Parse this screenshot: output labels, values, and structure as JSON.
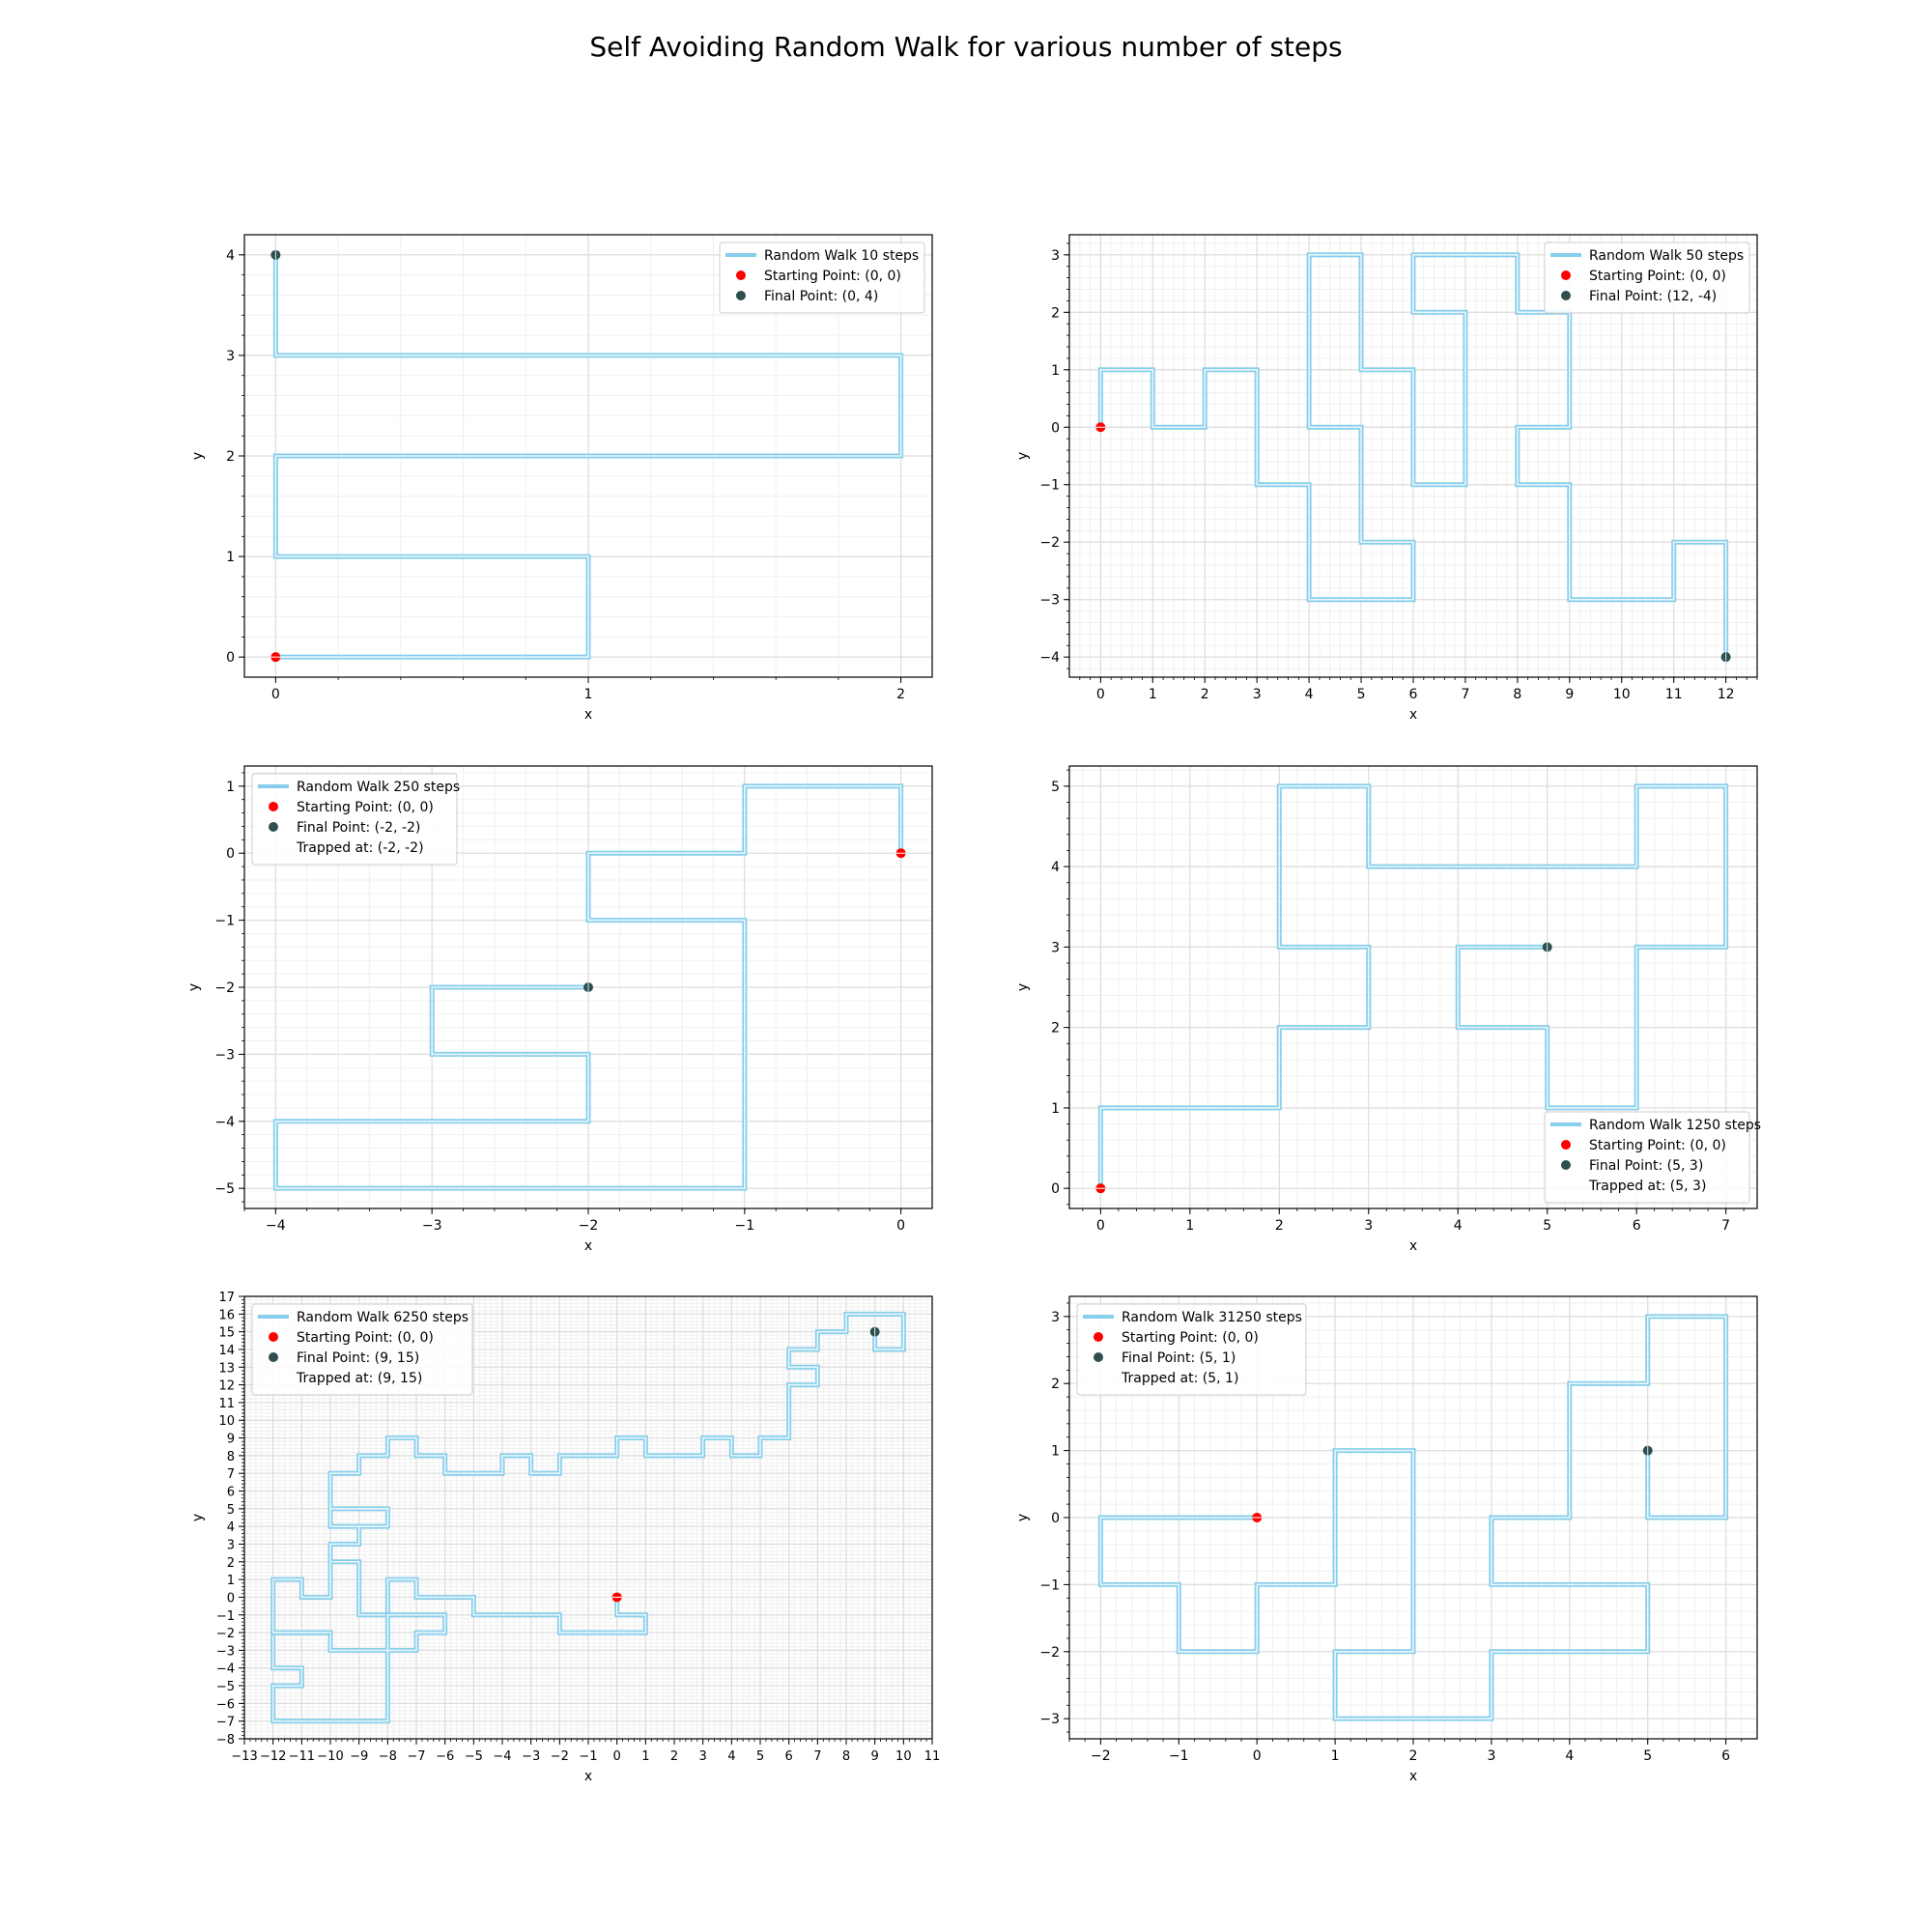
{
  "figure": {
    "title": "Self Avoiding Random Walk for various number of steps"
  },
  "colors": {
    "walk_outer": "#87CEEB",
    "walk_inner": "#e9f6fb",
    "start": "#ff0000",
    "final": "#2f4f4f",
    "grid_major": "#dddddd",
    "grid_minor": "#f0f0f0",
    "axis": "#000000",
    "legend_border": "#cccccc"
  },
  "chart_data": [
    {
      "type": "line",
      "xlabel": "x",
      "ylabel": "y",
      "xlim": [
        -0.1,
        2.1
      ],
      "ylim": [
        -0.2,
        4.2
      ],
      "xticks": [
        0,
        1,
        2
      ],
      "yticks": [
        0,
        1,
        2,
        3,
        4
      ],
      "grid": true,
      "legend_position": "top-right",
      "legend": [
        "Random Walk 10 steps",
        "Starting Point: (0, 0)",
        "Final Point:  (0, 4)"
      ],
      "series": [
        {
          "name": "Random Walk 10 steps",
          "x": [
            0,
            1,
            1,
            0,
            0,
            2,
            2,
            0,
            0
          ],
          "y": [
            0,
            0,
            1,
            1,
            2,
            2,
            3,
            3,
            4
          ]
        }
      ],
      "start": [
        0,
        0
      ],
      "final": [
        0,
        4
      ]
    },
    {
      "type": "line",
      "xlabel": "x",
      "ylabel": "y",
      "xlim": [
        -0.6,
        12.6
      ],
      "ylim": [
        -4.35,
        3.35
      ],
      "xticks": [
        0,
        1,
        2,
        3,
        4,
        5,
        6,
        7,
        8,
        9,
        10,
        11,
        12
      ],
      "yticks": [
        -4,
        -3,
        -2,
        -1,
        0,
        1,
        2,
        3
      ],
      "grid": true,
      "legend_position": "top-right",
      "legend": [
        "Random Walk 50 steps",
        "Starting Point: (0, 0)",
        "Final Point:  (12, -4)"
      ],
      "series": [
        {
          "name": "Random Walk 50 steps",
          "x": [
            0,
            0,
            1,
            1,
            2,
            2,
            3,
            3,
            4,
            4,
            5,
            5,
            6,
            6,
            5,
            5,
            4,
            4,
            5,
            5,
            6,
            6,
            7,
            7,
            6,
            6,
            8,
            8,
            9,
            9,
            8,
            8,
            9,
            9,
            11,
            11,
            12,
            12
          ],
          "y": [
            0,
            1,
            1,
            0,
            0,
            1,
            1,
            -1,
            -1,
            -3,
            -3,
            -3,
            -3,
            -2,
            -2,
            0,
            0,
            3,
            3,
            1,
            1,
            -1,
            -1,
            2,
            2,
            3,
            3,
            2,
            2,
            0,
            0,
            -1,
            -1,
            -3,
            -3,
            -2,
            -2,
            -4
          ]
        }
      ],
      "start": [
        0,
        0
      ],
      "final": [
        12,
        -4
      ]
    },
    {
      "type": "line",
      "xlabel": "x",
      "ylabel": "y",
      "xlim": [
        -4.2,
        0.2
      ],
      "ylim": [
        -5.3,
        1.3
      ],
      "xticks": [
        -4,
        -3,
        -2,
        -1,
        0
      ],
      "yticks": [
        -5,
        -4,
        -3,
        -2,
        -1,
        0,
        1
      ],
      "grid": true,
      "legend_position": "top-left",
      "legend": [
        "Random Walk 250 steps",
        "Starting Point: (0, 0)",
        "Final Point:  (-2, -2)",
        "Trapped at: (-2, -2)"
      ],
      "series": [
        {
          "name": "Random Walk 250 steps",
          "x": [
            0,
            0,
            -1,
            -1,
            -2,
            -2,
            -1,
            -1,
            -4,
            -4,
            -2,
            -2,
            -3,
            -3,
            -2
          ],
          "y": [
            0,
            1,
            1,
            0,
            0,
            -1,
            -1,
            -5,
            -5,
            -4,
            -4,
            -3,
            -3,
            -2,
            -2
          ]
        }
      ],
      "start": [
        0,
        0
      ],
      "final": [
        -2,
        -2
      ]
    },
    {
      "type": "line",
      "xlabel": "x",
      "ylabel": "y",
      "xlim": [
        -0.35,
        7.35
      ],
      "ylim": [
        -0.25,
        5.25
      ],
      "xticks": [
        0,
        1,
        2,
        3,
        4,
        5,
        6,
        7
      ],
      "yticks": [
        0,
        1,
        2,
        3,
        4,
        5
      ],
      "grid": true,
      "legend_position": "bottom-right",
      "legend": [
        "Random Walk 1250 steps",
        "Starting Point: (0, 0)",
        "Final Point:  (5, 3)",
        "Trapped at: (5, 3)"
      ],
      "series": [
        {
          "name": "Random Walk 1250 steps",
          "x": [
            0,
            0,
            2,
            2,
            3,
            3,
            2,
            2,
            3,
            3,
            6,
            6,
            7,
            7,
            6,
            6,
            5,
            5,
            4,
            4,
            5
          ],
          "y": [
            0,
            1,
            1,
            2,
            2,
            3,
            3,
            5,
            5,
            4,
            4,
            5,
            5,
            3,
            3,
            1,
            1,
            2,
            2,
            3,
            3
          ]
        }
      ],
      "start": [
        0,
        0
      ],
      "final": [
        5,
        3
      ]
    },
    {
      "type": "line",
      "xlabel": "x",
      "ylabel": "y",
      "xlim": [
        -13,
        11
      ],
      "ylim": [
        -8,
        17
      ],
      "xticks": [
        -13,
        -12,
        -11,
        -10,
        -9,
        -8,
        -7,
        -6,
        -5,
        -4,
        -3,
        -2,
        -1,
        0,
        1,
        2,
        3,
        4,
        5,
        6,
        7,
        8,
        9,
        10,
        11
      ],
      "yticks": [
        -8,
        -7,
        -6,
        -5,
        -4,
        -3,
        -2,
        -1,
        0,
        1,
        2,
        3,
        4,
        5,
        6,
        7,
        8,
        9,
        10,
        11,
        12,
        13,
        14,
        15,
        16,
        17
      ],
      "grid": true,
      "legend_position": "top-left",
      "legend": [
        "Random Walk 6250 steps",
        "Starting Point: (0, 0)",
        "Final Point:  (9, 15)",
        "Trapped at: (9, 15)"
      ],
      "series": [
        {
          "name": "Random Walk 6250 steps",
          "x": [
            0,
            0,
            1,
            1,
            -2,
            -2,
            -5,
            -5,
            -7,
            -7,
            -8,
            -8,
            -9,
            -9,
            -10,
            -10,
            -9,
            -9,
            -10,
            -10,
            -8,
            -8,
            -10,
            -10,
            -9,
            -9,
            -8,
            -8,
            -7,
            -7,
            -6,
            -6,
            -4,
            -4,
            -3,
            -3,
            -2,
            -2,
            0,
            0,
            1,
            1,
            3,
            3,
            4,
            4,
            5,
            5,
            6,
            6,
            7,
            7,
            6,
            6,
            7,
            7,
            8,
            8,
            10,
            10,
            9,
            9
          ],
          "y": [
            0,
            -1,
            -1,
            -2,
            -2,
            -1,
            -1,
            0,
            0,
            1,
            1,
            -1,
            -1,
            2,
            2,
            3,
            3,
            4,
            4,
            5,
            5,
            4,
            4,
            7,
            7,
            8,
            8,
            9,
            9,
            8,
            8,
            7,
            7,
            8,
            8,
            7,
            7,
            8,
            8,
            9,
            9,
            8,
            8,
            9,
            9,
            8,
            8,
            9,
            9,
            12,
            12,
            13,
            13,
            14,
            14,
            15,
            15,
            16,
            16,
            14,
            14,
            15
          ]
        },
        {
          "name": "",
          "x": [
            -8,
            -8,
            -7,
            -7,
            -6,
            -6,
            -8,
            -8,
            -12,
            -12,
            -11,
            -11,
            -12,
            -12,
            -10,
            -10,
            -8,
            -8,
            -7,
            -7
          ],
          "y": [
            -1,
            -3,
            -3,
            -2,
            -2,
            -1,
            -1,
            -7,
            -7,
            -5,
            -5,
            -4,
            -4,
            -2,
            -2,
            -3,
            -3,
            -3,
            -3,
            -2
          ]
        },
        {
          "name": "",
          "x": [
            -10,
            -10,
            -11,
            -11,
            -12,
            -12,
            -10
          ],
          "y": [
            2,
            0,
            0,
            1,
            1,
            -2,
            -2
          ]
        }
      ],
      "start": [
        0,
        0
      ],
      "final": [
        9,
        15
      ]
    },
    {
      "type": "line",
      "xlabel": "x",
      "ylabel": "y",
      "xlim": [
        -2.4,
        6.4
      ],
      "ylim": [
        -3.3,
        3.3
      ],
      "xticks": [
        -2,
        -1,
        0,
        1,
        2,
        3,
        4,
        5,
        6
      ],
      "yticks": [
        -3,
        -2,
        -1,
        0,
        1,
        2,
        3
      ],
      "grid": true,
      "legend_position": "top-left",
      "legend": [
        "Random Walk 31250 steps",
        "Starting Point: (0, 0)",
        "Final Point:  (5, 1)",
        "Trapped at: (5, 1)"
      ],
      "series": [
        {
          "name": "Random Walk 31250 steps",
          "x": [
            0,
            -2,
            -2,
            -1,
            -1,
            0,
            0,
            1,
            1,
            2,
            2,
            1,
            1,
            3,
            3,
            5,
            5,
            3,
            3,
            4,
            4,
            5,
            5,
            6,
            6,
            5,
            5
          ],
          "y": [
            0,
            0,
            -1,
            -1,
            -2,
            -2,
            -1,
            -1,
            1,
            1,
            -2,
            -2,
            -3,
            -3,
            -2,
            -2,
            -1,
            -1,
            0,
            0,
            2,
            2,
            3,
            3,
            0,
            0,
            1
          ]
        }
      ],
      "start": [
        0,
        0
      ],
      "final": [
        5,
        1
      ]
    }
  ]
}
